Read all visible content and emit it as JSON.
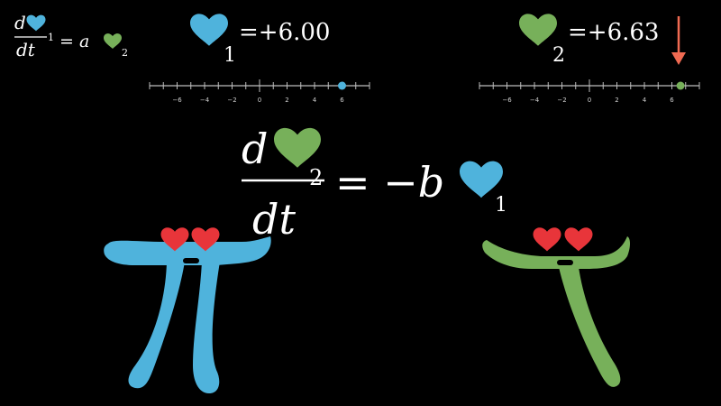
{
  "colors": {
    "blue": "#4fb3dc",
    "green": "#77b05a",
    "red": "#e8353a",
    "arrow": "#f06a52",
    "axis": "#bdbdbd"
  },
  "small_equation": {
    "numerator_symbol": "d",
    "denominator": "dt",
    "subscript_1": "1",
    "equals_coef": "= a",
    "subscript_2": "2"
  },
  "readout_1": {
    "subscript": "1",
    "value_text": "=+6.00",
    "value": 6.0
  },
  "readout_2": {
    "subscript": "2",
    "value_text": "=+6.63",
    "value": 6.63
  },
  "number_line_1": {
    "tick_labels": [
      "−6",
      "−4",
      "−2",
      "0",
      "2",
      "4",
      "6"
    ],
    "marker_value": 6.0
  },
  "number_line_2": {
    "tick_labels": [
      "−6",
      "−4",
      "−2",
      "0",
      "2",
      "4",
      "6"
    ],
    "marker_value": 6.63
  },
  "main_equation": {
    "numerator_symbol": "d",
    "denominator": "dt",
    "superscript": "2",
    "equals_coef": "= −b",
    "subscript": "1"
  },
  "characters": {
    "left": {
      "shape": "pi",
      "color": "blue",
      "eyes": "heart-eyes"
    },
    "right": {
      "shape": "tau",
      "color": "green",
      "eyes": "heart-eyes"
    }
  },
  "icons": [
    "heart-icon",
    "down-arrow-icon"
  ]
}
